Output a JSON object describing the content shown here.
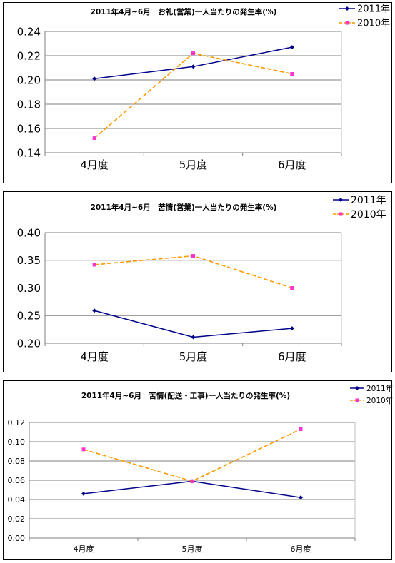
{
  "chart_data": [
    {
      "type": "line",
      "title": "2011年4月~6月　お礼(営業)一人当たりの発生率(%)",
      "categories": [
        "4月度",
        "5月度",
        "6月度"
      ],
      "series": [
        {
          "name": "2011年",
          "values": [
            0.201,
            0.211,
            0.227
          ],
          "color": "#00008b",
          "style": "solid",
          "marker": "diamond"
        },
        {
          "name": "2010年",
          "values": [
            0.152,
            0.222,
            0.205
          ],
          "color": "#ff9900",
          "style": "dashed",
          "marker": "square",
          "marker_color": "#ff33cc"
        }
      ],
      "ylim": [
        0.14,
        0.24
      ],
      "yticks": [
        "0.14",
        "0.16",
        "0.18",
        "0.20",
        "0.22",
        "0.24"
      ],
      "grid": true,
      "legend": "top-right"
    },
    {
      "type": "line",
      "title": "2011年4月~6月　苦情(営業)一人当たりの発生率(%)",
      "categories": [
        "4月度",
        "5月度",
        "6月度"
      ],
      "series": [
        {
          "name": "2011年",
          "values": [
            0.259,
            0.211,
            0.227
          ],
          "color": "#00008b",
          "style": "solid",
          "marker": "diamond"
        },
        {
          "name": "2010年",
          "values": [
            0.342,
            0.358,
            0.3
          ],
          "color": "#ff9900",
          "style": "dashed",
          "marker": "square",
          "marker_color": "#ff33cc"
        }
      ],
      "ylim": [
        0.2,
        0.4
      ],
      "yticks": [
        "0.20",
        "0.25",
        "0.30",
        "0.35",
        "0.40"
      ],
      "grid": true,
      "legend": "top-right"
    },
    {
      "type": "line",
      "title": "2011年4月~6月　苦情(配送・工事)一人当たりの発生率(%)",
      "categories": [
        "4月度",
        "5月度",
        "6月度"
      ],
      "series": [
        {
          "name": "2011年",
          "values": [
            0.046,
            0.059,
            0.042
          ],
          "color": "#00008b",
          "style": "solid",
          "marker": "diamond"
        },
        {
          "name": "2010年",
          "values": [
            0.092,
            0.059,
            0.113
          ],
          "color": "#ff9900",
          "style": "dashed",
          "marker": "square",
          "marker_color": "#ff33cc"
        }
      ],
      "ylim": [
        0.0,
        0.12
      ],
      "yticks": [
        "0.00",
        "0.02",
        "0.04",
        "0.06",
        "0.08",
        "0.10",
        "0.12"
      ],
      "grid": true,
      "legend": "top-right"
    }
  ]
}
